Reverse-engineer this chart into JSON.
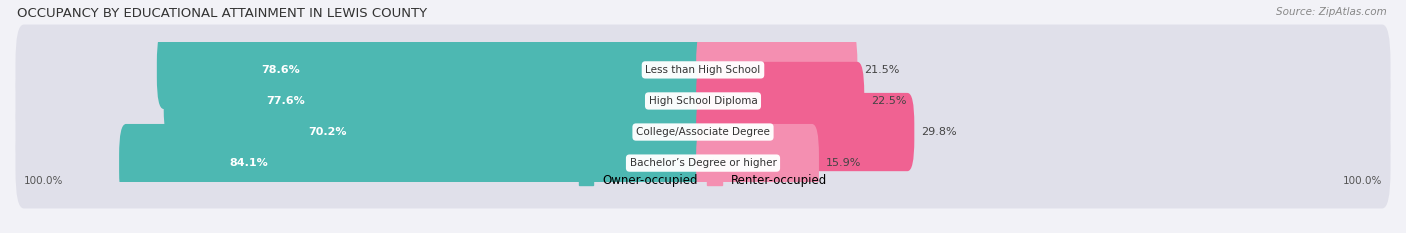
{
  "title": "OCCUPANCY BY EDUCATIONAL ATTAINMENT IN LEWIS COUNTY",
  "source": "Source: ZipAtlas.com",
  "categories": [
    "Less than High School",
    "High School Diploma",
    "College/Associate Degree",
    "Bachelor’s Degree or higher"
  ],
  "owner_pct": [
    78.6,
    77.6,
    70.2,
    84.1
  ],
  "renter_pct": [
    21.5,
    22.5,
    29.8,
    15.9
  ],
  "owner_color": "#4db8b2",
  "renter_color": "#f48fb1",
  "renter_color_dark": "#f06292",
  "bg_color": "#f2f2f7",
  "bar_bg_color": "#e0e0ea",
  "title_fontsize": 9.5,
  "source_fontsize": 7.5,
  "label_fontsize": 7.5,
  "pct_fontsize": 8,
  "axis_label_left": "100.0%",
  "axis_label_right": "100.0%",
  "legend_owner": "Owner-occupied",
  "legend_renter": "Renter-occupied"
}
